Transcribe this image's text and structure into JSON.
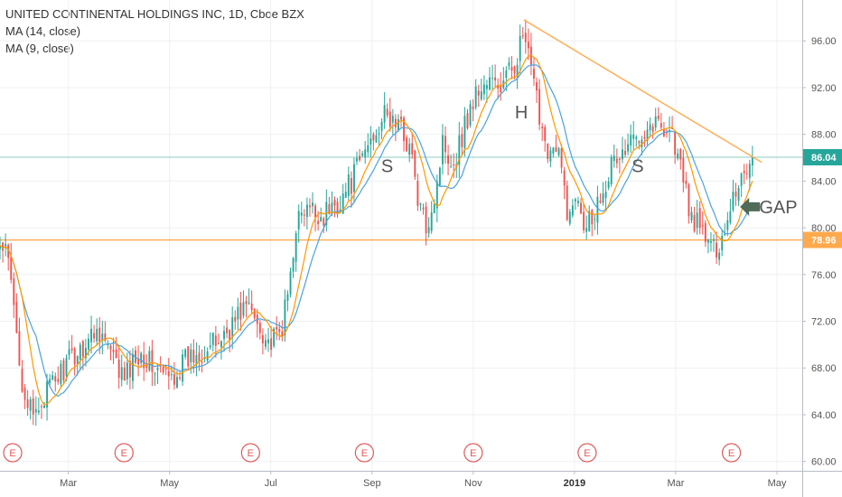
{
  "legend": {
    "title": "UNITED CONTINENTAL HOLDINGS INC, 1D, Cboe BZX",
    "ma14": "MA (14, close)",
    "ma9": "MA (9, close)"
  },
  "colors": {
    "up": "#26a69a",
    "down": "#ef5350",
    "ma14": "#ff9800",
    "ma9": "#4aa3df",
    "resistance": "#ffa94d",
    "support": "#ffa94d",
    "teal_line": "#8ecbc0",
    "earnings": "#e05a5a",
    "arrow": "#4f6b5a"
  },
  "chart_data": {
    "type": "candlestick",
    "symbol": "UNITED CONTINENTAL HOLDINGS INC",
    "interval": "1D",
    "exchange": "Cboe BZX",
    "y_ticks": [
      "96.00",
      "92.00",
      "88.00",
      "84.00",
      "80.00",
      "76.00",
      "72.00",
      "68.00",
      "64.00",
      "60.00"
    ],
    "ylim": [
      59.2,
      99.5
    ],
    "x_ticks": [
      {
        "label": "Mar",
        "x": 1.0
      },
      {
        "label": "May",
        "x": 3.0
      },
      {
        "label": "Jul",
        "x": 5.0
      },
      {
        "label": "Sep",
        "x": 7.0
      },
      {
        "label": "Nov",
        "x": 9.0
      },
      {
        "label": "2019",
        "x": 11.0,
        "bold": true
      },
      {
        "label": "Mar",
        "x": 13.0
      },
      {
        "label": "May",
        "x": 15.0
      }
    ],
    "xlim": [
      -0.35,
      15.5
    ],
    "price_labels": [
      {
        "value": 86.04,
        "text": "86.04",
        "color": "#26a69a"
      },
      {
        "value": 78.96,
        "text": "78.96",
        "color": "#ffa94d"
      }
    ],
    "support_level": 78.96,
    "last_price": 86.04,
    "resistance_line": {
      "from": [
        10.0,
        97.8
      ],
      "to": [
        14.7,
        85.6
      ]
    },
    "earnings_markers": [
      -0.1,
      2.1,
      4.6,
      6.85,
      9.0,
      11.25,
      14.1
    ],
    "earnings_glyph": "E",
    "annotations": [
      {
        "text": "S",
        "x": 7.3,
        "y": 85.3
      },
      {
        "text": "H",
        "x": 9.95,
        "y": 89.9
      },
      {
        "text": "S",
        "x": 12.25,
        "y": 85.3
      },
      {
        "text": "GAP",
        "x": 14.65,
        "y": 81.8
      }
    ],
    "gap_arrow": {
      "x": 14.45,
      "y": 81.8
    },
    "anchors": [
      [
        -0.35,
        78.3
      ],
      [
        -0.2,
        77.5
      ],
      [
        -0.05,
        72.0
      ],
      [
        0.1,
        66.5
      ],
      [
        0.3,
        63.5
      ],
      [
        0.5,
        65.5
      ],
      [
        0.75,
        67.0
      ],
      [
        1.0,
        68.5
      ],
      [
        1.3,
        70.0
      ],
      [
        1.6,
        71.5
      ],
      [
        1.9,
        68.5
      ],
      [
        2.1,
        67.0
      ],
      [
        2.4,
        69.5
      ],
      [
        2.7,
        68.0
      ],
      [
        3.0,
        67.0
      ],
      [
        3.3,
        68.5
      ],
      [
        3.6,
        69.5
      ],
      [
        3.9,
        70.0
      ],
      [
        4.2,
        71.5
      ],
      [
        4.5,
        73.5
      ],
      [
        4.8,
        71.5
      ],
      [
        5.0,
        70.0
      ],
      [
        5.2,
        71.0
      ],
      [
        5.35,
        74.5
      ],
      [
        5.5,
        80.5
      ],
      [
        5.75,
        81.5
      ],
      [
        6.0,
        81.0
      ],
      [
        6.3,
        82.0
      ],
      [
        6.6,
        84.0
      ],
      [
        6.9,
        87.0
      ],
      [
        7.2,
        89.5
      ],
      [
        7.5,
        89.0
      ],
      [
        7.75,
        87.0
      ],
      [
        7.9,
        82.5
      ],
      [
        8.05,
        80.0
      ],
      [
        8.25,
        83.0
      ],
      [
        8.4,
        87.5
      ],
      [
        8.6,
        85.5
      ],
      [
        8.85,
        89.0
      ],
      [
        9.05,
        91.5
      ],
      [
        9.3,
        92.5
      ],
      [
        9.55,
        92.0
      ],
      [
        9.8,
        94.0
      ],
      [
        10.0,
        96.5
      ],
      [
        10.2,
        92.0
      ],
      [
        10.45,
        87.0
      ],
      [
        10.7,
        86.0
      ],
      [
        10.9,
        80.5
      ],
      [
        11.05,
        83.5
      ],
      [
        11.2,
        80.5
      ],
      [
        11.4,
        81.5
      ],
      [
        11.55,
        83.5
      ],
      [
        11.75,
        85.5
      ],
      [
        12.0,
        86.5
      ],
      [
        12.3,
        88.5
      ],
      [
        12.6,
        89.0
      ],
      [
        12.9,
        88.5
      ],
      [
        13.1,
        85.0
      ],
      [
        13.3,
        81.0
      ],
      [
        13.55,
        79.5
      ],
      [
        13.75,
        78.0
      ],
      [
        13.95,
        79.5
      ],
      [
        14.1,
        82.5
      ],
      [
        14.3,
        84.5
      ],
      [
        14.45,
        85.5
      ],
      [
        14.55,
        86.04
      ]
    ]
  }
}
